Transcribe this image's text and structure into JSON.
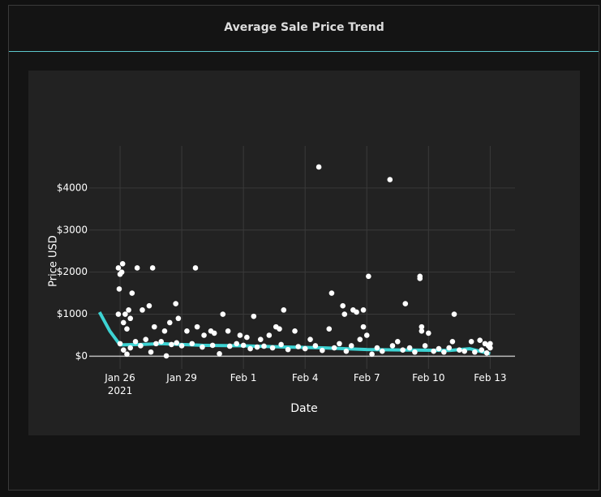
{
  "chart_data": {
    "type": "scatter",
    "title": "Average Sale Price Trend",
    "xlabel": "Date",
    "ylabel": "Price USD",
    "xlim": [
      "2021-01-24T12:00",
      "2021-02-14T05:00"
    ],
    "xticks": [
      {
        "value": "2021-01-26T00:00",
        "label": "Jan 26\n2021"
      },
      {
        "value": "2021-01-29T00:00",
        "label": "Jan 29"
      },
      {
        "value": "2021-02-01T00:00",
        "label": "Feb 1"
      },
      {
        "value": "2021-02-04T00:00",
        "label": "Feb 4"
      },
      {
        "value": "2021-02-07T00:00",
        "label": "Feb 7"
      },
      {
        "value": "2021-02-10T00:00",
        "label": "Feb 10"
      },
      {
        "value": "2021-02-13T00:00",
        "label": "Feb 13"
      }
    ],
    "ylim": [
      -300,
      5000
    ],
    "yticks": [
      {
        "value": 0,
        "label": "$0"
      },
      {
        "value": 1000,
        "label": "$1000"
      },
      {
        "value": 2000,
        "label": "$2000"
      },
      {
        "value": 3000,
        "label": "$3000"
      },
      {
        "value": 4000,
        "label": "$4000"
      }
    ],
    "grid": true,
    "points": {
      "color": "#ffffff",
      "x": [
        "2021-01-25T22:00",
        "2021-01-25T22:00",
        "2021-01-25T23:00",
        "2021-01-26T00:00",
        "2021-01-26T03:00",
        "2021-01-26T02:00",
        "2021-01-26T06:00",
        "2021-01-26T04:00",
        "2021-01-26T08:00",
        "2021-01-26T10:00",
        "2021-01-26T12:00",
        "2021-01-26T14:00",
        "2021-01-26T20:00",
        "2021-01-27T02:00",
        "2021-01-27T10:00",
        "2021-01-27T14:00",
        "2021-01-27T16:00",
        "2021-01-28T04:00",
        "2021-01-28T10:00",
        "2021-01-28T17:00",
        "2021-01-28T20:00",
        "2021-01-29T06:00",
        "2021-01-29T16:00",
        "2021-01-29T18:00",
        "2021-01-30T02:00",
        "2021-01-30T10:00",
        "2021-01-30T14:00",
        "2021-01-31T00:00",
        "2021-01-31T06:00",
        "2021-01-31T20:00",
        "2021-02-01T04:00",
        "2021-02-01T12:00",
        "2021-02-01T20:00",
        "2021-02-02T06:00",
        "2021-02-02T14:00",
        "2021-02-02T18:00",
        "2021-02-02T23:00",
        "2021-02-03T12:00",
        "2021-02-04T06:00",
        "2021-02-04T16:00",
        "2021-02-05T04:00",
        "2021-02-05T07:00",
        "2021-02-05T20:00",
        "2021-02-05T22:00",
        "2021-02-06T08:00",
        "2021-02-06T12:00",
        "2021-02-06T20:00",
        "2021-02-06T20:00",
        "2021-02-07T02:00",
        "2021-02-07T00:00",
        "2021-02-08T03:00",
        "2021-02-08T21:00",
        "2021-02-09T14:00",
        "2021-02-09T14:00",
        "2021-02-09T16:00",
        "2021-02-09T16:00",
        "2021-02-10T00:00",
        "2021-02-11T06:00",
        "2021-02-11T04:00",
        "2021-02-12T02:00",
        "2021-02-12T12:00",
        "2021-02-12T18:00",
        "2021-02-12T22:00",
        "2021-01-26T00:00",
        "2021-01-26T04:00",
        "2021-01-26T08:00",
        "2021-01-26T12:00",
        "2021-01-26T18:00",
        "2021-01-27T00:00",
        "2021-01-27T06:00",
        "2021-01-27T12:00",
        "2021-01-27T18:00",
        "2021-01-28T00:00",
        "2021-01-28T06:00",
        "2021-01-28T12:00",
        "2021-01-28T18:00",
        "2021-01-29T00:00",
        "2021-01-29T12:00",
        "2021-01-30T00:00",
        "2021-01-30T12:00",
        "2021-01-30T20:00",
        "2021-01-31T08:00",
        "2021-01-31T16:00",
        "2021-02-01T00:00",
        "2021-02-01T08:00",
        "2021-02-01T16:00",
        "2021-02-02T00:00",
        "2021-02-02T10:00",
        "2021-02-02T20:00",
        "2021-02-03T04:00",
        "2021-02-03T16:00",
        "2021-02-04T00:00",
        "2021-02-04T12:00",
        "2021-02-04T20:00",
        "2021-02-05T10:00",
        "2021-02-05T16:00",
        "2021-02-06T00:00",
        "2021-02-06T06:00",
        "2021-02-06T16:00",
        "2021-02-07T06:00",
        "2021-02-07T12:00",
        "2021-02-07T18:00",
        "2021-02-08T06:00",
        "2021-02-08T12:00",
        "2021-02-08T18:00",
        "2021-02-09T02:00",
        "2021-02-09T08:00",
        "2021-02-09T20:00",
        "2021-02-10T06:00",
        "2021-02-10T12:00",
        "2021-02-10T18:00",
        "2021-02-11T00:00",
        "2021-02-11T12:00",
        "2021-02-11T18:00",
        "2021-02-12T06:00",
        "2021-02-12T14:00",
        "2021-02-12T20:00",
        "2021-02-13T00:00",
        "2021-02-13T00:00"
      ],
      "values": [
        1000,
        2100,
        1600,
        1950,
        2200,
        2000,
        1000,
        800,
        650,
        1100,
        900,
        1500,
        2100,
        1100,
        1200,
        2100,
        700,
        600,
        800,
        1250,
        900,
        600,
        2100,
        700,
        500,
        600,
        550,
        1000,
        600,
        500,
        450,
        950,
        400,
        500,
        700,
        650,
        1100,
        600,
        400,
        4500,
        650,
        1500,
        1200,
        1000,
        1100,
        1050,
        1100,
        700,
        1900,
        500,
        4200,
        1250,
        1900,
        1850,
        700,
        600,
        550,
        1000,
        350,
        350,
        380,
        300,
        250,
        300,
        150,
        50,
        200,
        350,
        250,
        400,
        100,
        300,
        350,
        10,
        280,
        320,
        250,
        300,
        220,
        260,
        60,
        240,
        300,
        260,
        180,
        220,
        240,
        200,
        280,
        160,
        230,
        180,
        250,
        140,
        200,
        300,
        120,
        250,
        400,
        50,
        200,
        120,
        250,
        350,
        150,
        200,
        100,
        250,
        120,
        180,
        100,
        200,
        150,
        120,
        100,
        150,
        80,
        200,
        300
      ]
    },
    "trend": {
      "color": "#3dd3d3",
      "x": [
        "2021-01-25T00:00",
        "2021-01-25T12:00",
        "2021-01-26T00:00",
        "2021-01-27T00:00",
        "2021-01-28T00:00",
        "2021-01-30T00:00",
        "2021-02-01T00:00",
        "2021-02-03T00:00",
        "2021-02-05T00:00",
        "2021-02-07T00:00",
        "2021-02-09T00:00",
        "2021-02-11T00:00",
        "2021-02-12T00:00",
        "2021-02-13T00:00"
      ],
      "values": [
        1050,
        600,
        270,
        280,
        300,
        260,
        250,
        220,
        200,
        160,
        150,
        140,
        180,
        60
      ]
    }
  }
}
